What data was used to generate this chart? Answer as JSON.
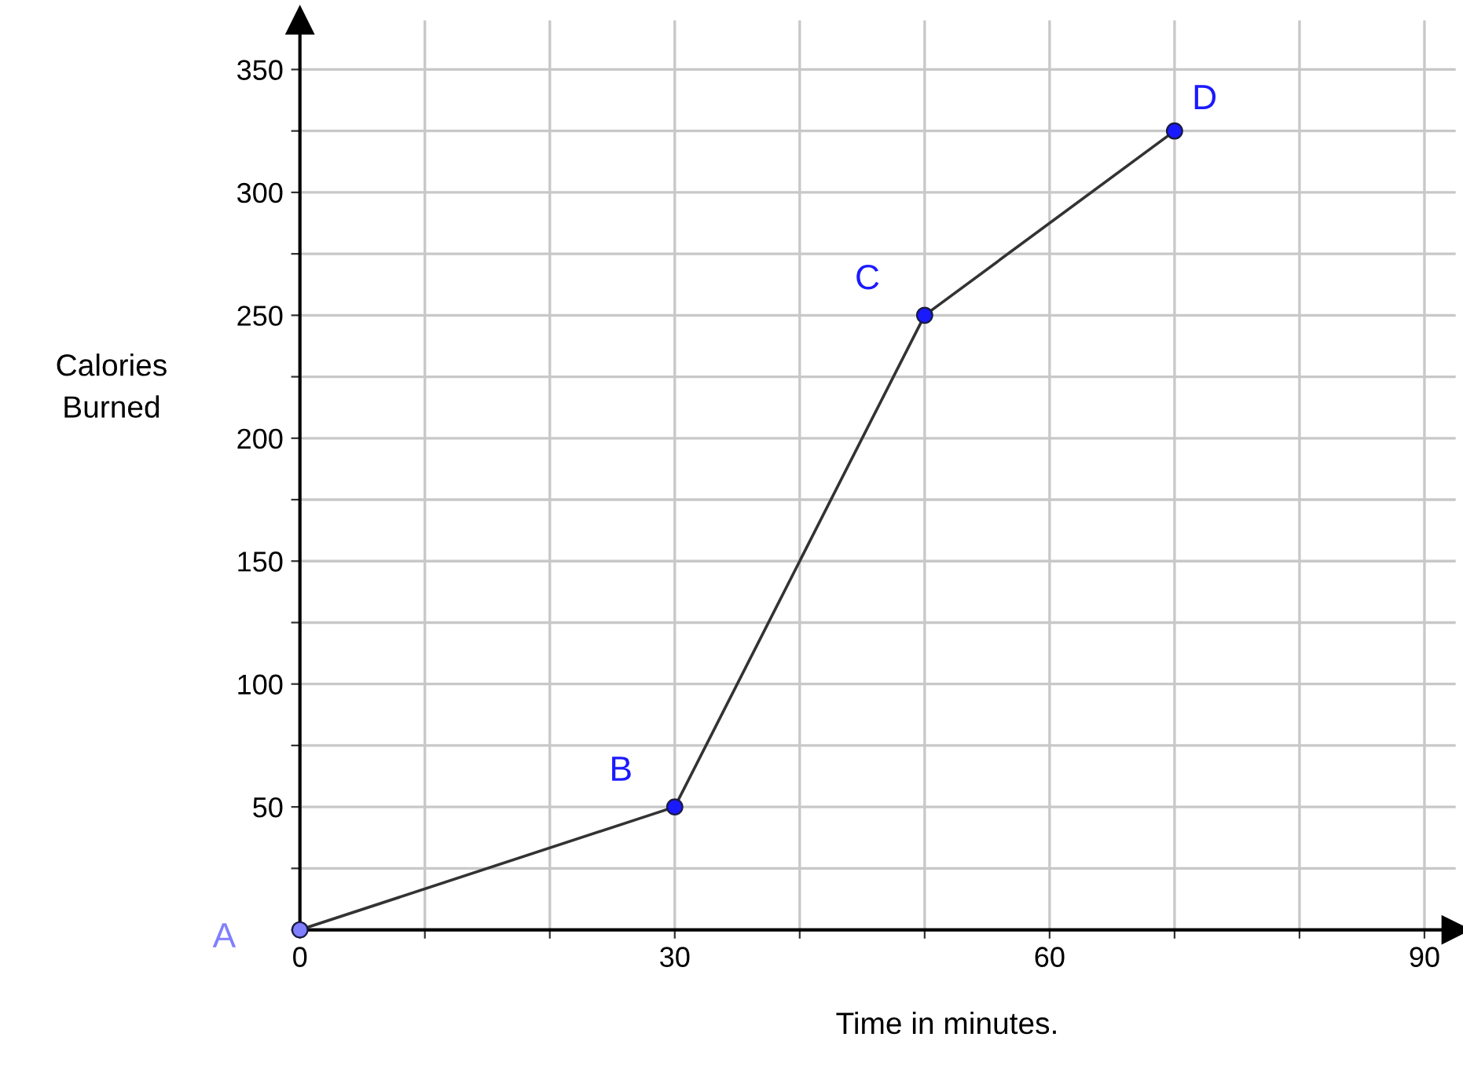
{
  "chart_data": {
    "type": "line",
    "xlabel": "Time in minutes.",
    "ylabel": "Calories\nBurned",
    "x": [
      0,
      30,
      50,
      70
    ],
    "series": [
      {
        "color": "#333333",
        "colors": [
          "#7f7fff",
          "#1a1aff",
          "#1a1aff",
          "#1a1aff"
        ],
        "values": [
          0,
          50,
          250,
          325
        ]
      }
    ],
    "marker": "circle",
    "line_style": "solid",
    "grid": true,
    "xlim": [
      0,
      92.5
    ],
    "ylim": [
      0,
      370
    ],
    "xticks": [
      0,
      {
        "value": 10,
        "label": null
      },
      {
        "value": 20,
        "label": null
      },
      30,
      {
        "value": 40,
        "label": null
      },
      {
        "value": 50,
        "label": null
      },
      60,
      {
        "value": 70,
        "label": null
      },
      {
        "value": 80,
        "label": null
      },
      90
    ],
    "yticks": [
      {
        "value": 0,
        "label": null
      },
      {
        "value": 25,
        "label": null
      },
      50,
      {
        "value": 75,
        "label": null
      },
      100,
      {
        "value": 125,
        "label": null
      },
      150,
      {
        "value": 175,
        "label": null
      },
      200,
      {
        "value": 225,
        "label": null
      },
      250,
      {
        "value": 275,
        "label": null
      },
      300,
      {
        "value": 325,
        "label": null
      },
      350
    ],
    "annotations": [
      {
        "text": "A",
        "x": 0,
        "y": 0
      },
      {
        "text": "B",
        "x": 30,
        "y": 50
      },
      {
        "text": "C",
        "x": 50,
        "y": 250
      },
      {
        "text": "D",
        "x": 70,
        "y": 325
      }
    ]
  }
}
